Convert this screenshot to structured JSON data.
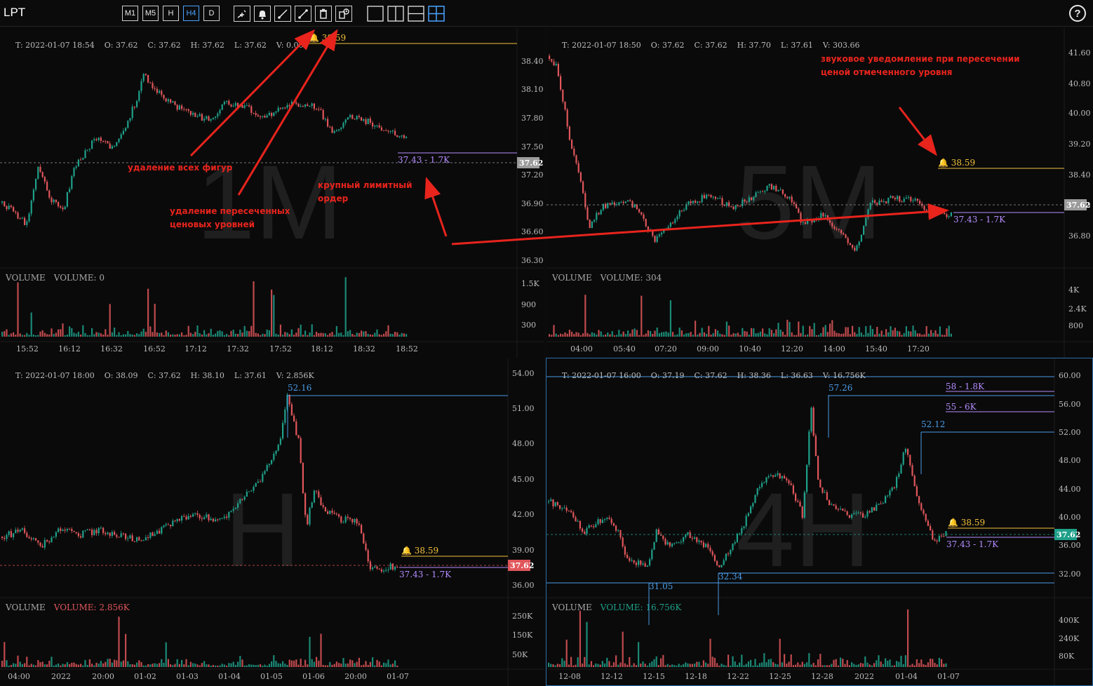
{
  "app": {
    "symbol": "LPT",
    "help_label": "?"
  },
  "timeframes": [
    {
      "label": "M1",
      "active": false
    },
    {
      "label": "M5",
      "active": false
    },
    {
      "label": "H",
      "active": false
    },
    {
      "label": "H4",
      "active": true
    },
    {
      "label": "D",
      "active": false
    }
  ],
  "tools": [
    "crosshair-icon",
    "alarm-bell-icon",
    "trend-line-icon",
    "ray-line-icon",
    "trash-icon",
    "clear-crossed-levels-icon"
  ],
  "layouts": [
    "layout-single-icon",
    "layout-vertical-split-icon",
    "layout-horizontal-split-icon",
    "layout-grid-4-icon"
  ],
  "colors": {
    "up": "#1fa08a",
    "down": "#e0565b",
    "alarm": "#f3c13a",
    "order": "#b58cff",
    "level": "#4a9be6",
    "annotation": "#e8241d"
  },
  "panels": [
    {
      "id": "m1",
      "watermark": "1M",
      "ohlc": {
        "t": "T: 2022-01-07 18:54",
        "o": "O: 37.62",
        "c": "C: 37.62",
        "h": "H: 37.62",
        "l": "L: 37.62",
        "v": "V: 0.00"
      },
      "volume_title": "VOLUME",
      "volume_value": "VOLUME: 0",
      "price_ticks": [
        "38.40",
        "38.10",
        "37.80",
        "37.50",
        "37.20",
        "36.90",
        "36.60",
        "36.30"
      ],
      "volume_ticks": [
        "1.5K",
        "900",
        "300"
      ],
      "time_ticks": [
        "15:52",
        "16:12",
        "16:32",
        "16:52",
        "17:12",
        "17:32",
        "17:52",
        "18:12",
        "18:32",
        "18:52"
      ],
      "last_price": "37.62",
      "alarm": "38.59",
      "order": "37.43 - 1.7K"
    },
    {
      "id": "m5",
      "watermark": "5M",
      "ohlc": {
        "t": "T: 2022-01-07 18:50",
        "o": "O: 37.62",
        "c": "C: 37.62",
        "h": "H: 37.70",
        "l": "L: 37.61",
        "v": "V: 303.66"
      },
      "volume_title": "VOLUME",
      "volume_value": "VOLUME: 304",
      "price_ticks": [
        "41.60",
        "40.80",
        "40.00",
        "39.20",
        "38.40",
        "37.60",
        "36.80"
      ],
      "volume_ticks": [
        "4K",
        "2.4K",
        "800"
      ],
      "time_ticks": [
        "04:00",
        "05:40",
        "07:20",
        "09:00",
        "10:40",
        "12:20",
        "14:00",
        "15:40",
        "17:20"
      ],
      "last_price": "37.62",
      "alarm": "38.59",
      "order": "37.43 - 1.7K"
    },
    {
      "id": "h1",
      "watermark": "H",
      "ohlc": {
        "t": "T: 2022-01-07 18:00",
        "o": "O: 38.09",
        "c": "C: 37.62",
        "h": "H: 38.10",
        "l": "L: 37.61",
        "v": "V: 2.856K"
      },
      "volume_title": "VOLUME",
      "volume_value": "VOLUME: 2.856K",
      "price_ticks": [
        "54.00",
        "51.00",
        "48.00",
        "45.00",
        "42.00",
        "39.00",
        "36.00"
      ],
      "volume_ticks": [
        "250K",
        "150K",
        "50K"
      ],
      "time_ticks": [
        "04:00",
        "2022",
        "20:00",
        "01-02",
        "01-03",
        "01-04",
        "01-05",
        "01-06",
        "20:00",
        "01-07"
      ],
      "last_price": "37.62",
      "alarm": "38.59",
      "order": "37.43 - 1.7K",
      "levels": [
        "52.16"
      ]
    },
    {
      "id": "h4",
      "watermark": "4H",
      "ohlc": {
        "t": "T: 2022-01-07 16:00",
        "o": "O: 37.19",
        "c": "C: 37.62",
        "h": "H: 38.36",
        "l": "L: 36.63",
        "v": "V: 16.756K"
      },
      "volume_title": "VOLUME",
      "volume_value": "VOLUME: 16.756K",
      "price_ticks": [
        "60.00",
        "56.00",
        "52.00",
        "48.00",
        "44.00",
        "40.00",
        "36.00",
        "32.00"
      ],
      "volume_ticks": [
        "400K",
        "240K",
        "80K"
      ],
      "time_ticks": [
        "12-08",
        "12-12",
        "12-15",
        "12-18",
        "12-22",
        "12-25",
        "12-28",
        "2022",
        "01-04",
        "01-07"
      ],
      "last_price": "37.62",
      "alarm": "38.59",
      "order": "37.43 - 1.7K",
      "levels": [
        "57.26",
        "52.12",
        "31.05",
        "32.34"
      ],
      "big_orders": [
        "58 - 1.8K",
        "55 - 6K"
      ]
    }
  ],
  "annotations": {
    "delete_all": "удаление всех фигур",
    "delete_crossed_1": "удаление пересеченных",
    "delete_crossed_2": "ценовых уровней",
    "limit_order_1": "крупный лимитный",
    "limit_order_2": "ордер",
    "sound_1": "звуковое уведомление при пересечении",
    "sound_2": "ценой отмеченного уровня"
  }
}
